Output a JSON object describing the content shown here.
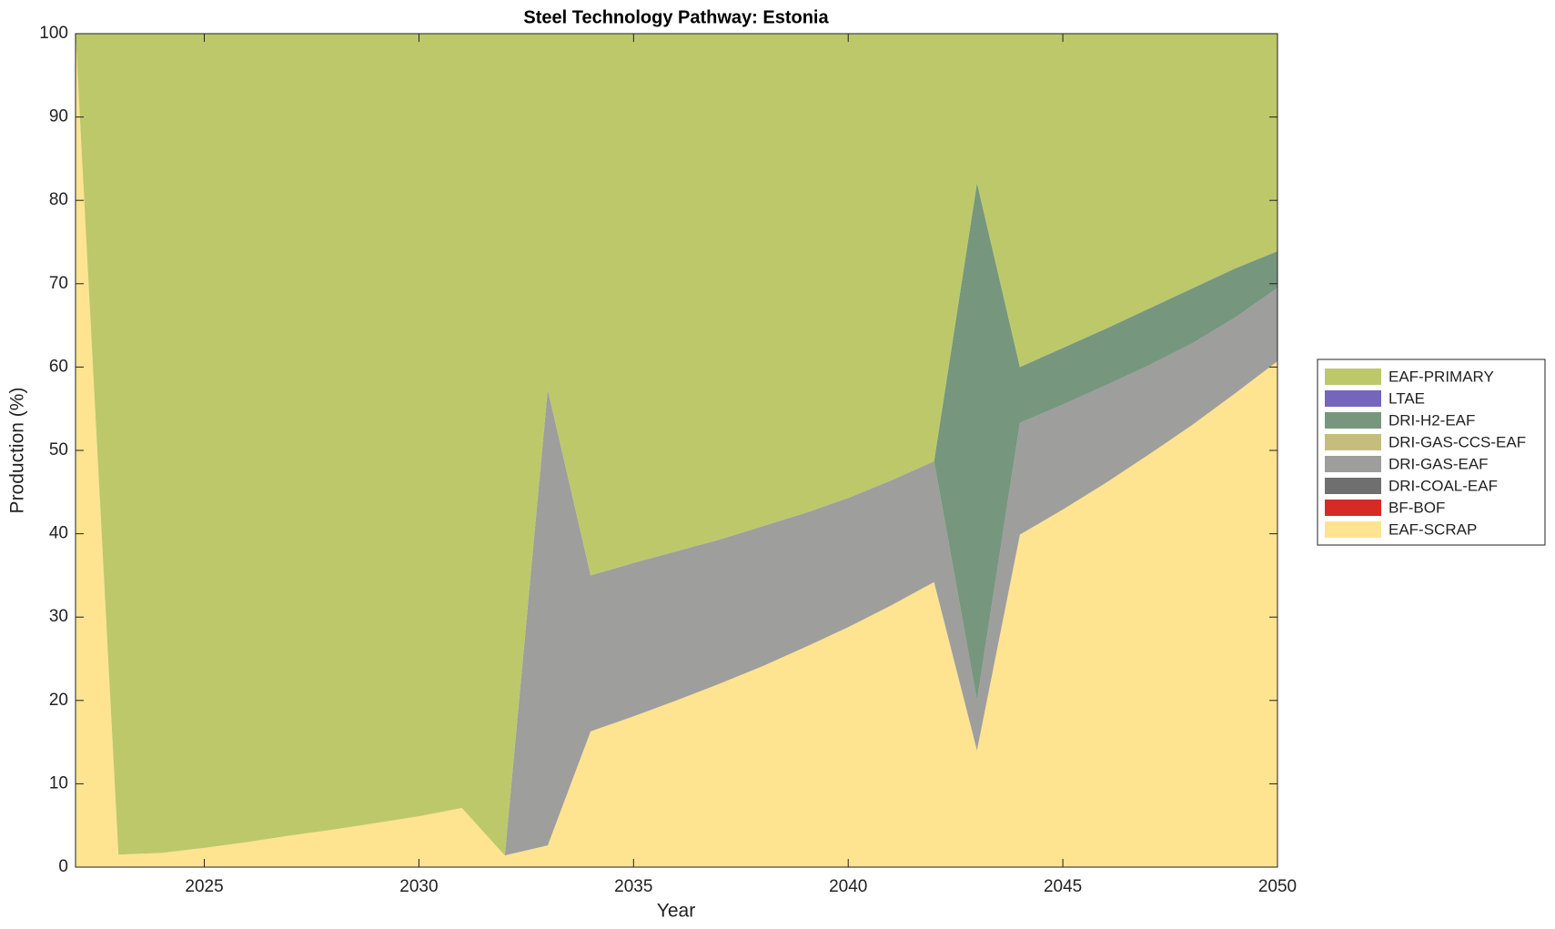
{
  "chart_data": {
    "type": "stacked-area",
    "title": "Steel Technology Pathway: Estonia",
    "x_label": "Year",
    "y_label": "Production (%)",
    "x": [
      2022,
      2023,
      2024,
      2025,
      2026,
      2027,
      2028,
      2029,
      2030,
      2031,
      2032,
      2033,
      2034,
      2035,
      2036,
      2037,
      2038,
      2039,
      2040,
      2041,
      2042,
      2043,
      2044,
      2045,
      2046,
      2047,
      2048,
      2049,
      2050
    ],
    "xlim": [
      2022,
      2050
    ],
    "xticks": [
      2025,
      2030,
      2035,
      2040,
      2045,
      2050
    ],
    "ylim": [
      0,
      100
    ],
    "yticks": [
      0,
      10,
      20,
      30,
      40,
      50,
      60,
      70,
      80,
      90,
      100
    ],
    "legend": "outside-right",
    "series": [
      {
        "name": "EAF-SCRAP",
        "color": "#fee391",
        "values": [
          100,
          1.5,
          1.7,
          2.3,
          3.0,
          3.8,
          4.5,
          5.3,
          6.1,
          7.1,
          1.4,
          2.6,
          16.3,
          18.1,
          20.0,
          22.0,
          24.1,
          26.4,
          28.8,
          31.4,
          34.2,
          14.0,
          39.9,
          42.9,
          46.1,
          49.5,
          53.0,
          56.8,
          60.7
        ]
      },
      {
        "name": "BF-BOF",
        "color": "#d62a27",
        "values": [
          0,
          0,
          0,
          0,
          0,
          0,
          0,
          0,
          0,
          0,
          0,
          0,
          0,
          0,
          0,
          0,
          0,
          0,
          0,
          0,
          0,
          0,
          0,
          0,
          0,
          0,
          0,
          0,
          0
        ]
      },
      {
        "name": "DRI-COAL-EAF",
        "color": "#6f6f6f",
        "values": [
          0,
          0,
          0,
          0,
          0,
          0,
          0,
          0,
          0,
          0,
          0,
          0,
          0,
          0,
          0,
          0,
          0,
          0,
          0,
          0,
          0,
          0,
          0,
          0,
          0,
          0,
          0,
          0,
          0
        ]
      },
      {
        "name": "DRI-GAS-EAF",
        "color": "#9e9e9c",
        "values": [
          0,
          0,
          0,
          0,
          0,
          0,
          0,
          0,
          0,
          0,
          0,
          54.7,
          18.7,
          18.4,
          17.9,
          17.3,
          16.8,
          16.1,
          15.5,
          15.0,
          14.5,
          6.0,
          13.4,
          12.6,
          11.7,
          10.7,
          9.8,
          9.1,
          8.8
        ]
      },
      {
        "name": "DRI-GAS-CCS-EAF",
        "color": "#c5bd7f",
        "values": [
          0,
          0,
          0,
          0,
          0,
          0,
          0,
          0,
          0,
          0,
          0,
          0,
          0,
          0,
          0,
          0,
          0,
          0,
          0,
          0,
          0,
          0,
          0,
          0,
          0,
          0,
          0,
          0,
          0
        ]
      },
      {
        "name": "DRI-H2-EAF",
        "color": "#76977d",
        "values": [
          0,
          0,
          0,
          0,
          0,
          0,
          0,
          0,
          0,
          0,
          0,
          0,
          0,
          0,
          0,
          0,
          0,
          0,
          0,
          0,
          0,
          62.1,
          6.7,
          6.8,
          6.8,
          6.8,
          6.6,
          5.9,
          4.4
        ]
      },
      {
        "name": "LTAE",
        "color": "#7565bb",
        "values": [
          0,
          0,
          0,
          0,
          0,
          0,
          0,
          0,
          0,
          0,
          0,
          0,
          0,
          0,
          0,
          0,
          0,
          0,
          0,
          0,
          0,
          0,
          0,
          0,
          0,
          0,
          0,
          0,
          0
        ]
      },
      {
        "name": "EAF-PRIMARY",
        "color": "#bdc86b",
        "values": [
          0,
          98.5,
          98.3,
          97.7,
          97.0,
          96.2,
          95.5,
          94.7,
          93.9,
          92.9,
          98.6,
          42.7,
          65.0,
          63.5,
          62.1,
          60.7,
          59.1,
          57.5,
          55.7,
          53.6,
          51.3,
          17.9,
          40.0,
          37.7,
          35.4,
          33.0,
          30.6,
          28.2,
          26.1
        ]
      }
    ]
  }
}
